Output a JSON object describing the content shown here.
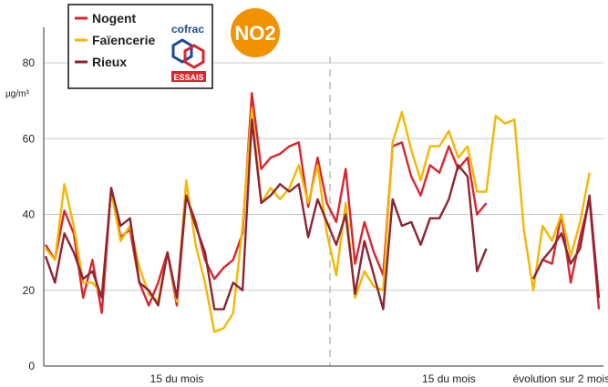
{
  "chart_data": {
    "type": "line",
    "y_label": "µg/m³",
    "pollutant": "NO2",
    "logo": [
      "cofrac",
      "ESSAIS"
    ],
    "categories": [
      null,
      null,
      null,
      null,
      null,
      null,
      null,
      null,
      null,
      null,
      null,
      null,
      null,
      null,
      "15 du mois",
      null,
      null,
      null,
      null,
      null,
      null,
      null,
      null,
      null,
      null,
      null,
      null,
      null,
      null,
      null,
      null,
      null,
      null,
      null,
      null,
      null,
      null,
      null,
      null,
      null,
      null,
      null,
      null,
      "15 du mois",
      null,
      null,
      null,
      null,
      null,
      null,
      null,
      null,
      null,
      null,
      null,
      "évolution sur 2 mois",
      null,
      null,
      null,
      null
    ],
    "series": [
      {
        "name": "Nogent",
        "color": "#d9262e",
        "values": [
          32,
          28,
          41,
          35,
          18,
          28,
          14,
          47,
          34,
          36,
          22,
          16,
          22,
          30,
          16,
          45,
          38,
          28,
          23,
          26,
          28,
          35,
          72,
          52,
          55,
          56,
          58,
          59,
          42,
          55,
          43,
          38,
          52,
          27,
          38,
          30,
          24,
          58,
          59,
          50,
          45,
          53,
          51,
          58,
          52,
          55,
          40,
          43,
          null,
          null,
          null,
          null,
          23,
          28,
          27,
          40,
          22,
          34,
          44,
          15
        ]
      },
      {
        "name": "Faïencerie",
        "color": "#f5b700",
        "values": [
          31,
          28,
          48,
          37,
          22,
          22,
          19,
          46,
          33,
          37,
          26,
          19,
          17,
          30,
          17,
          49,
          32,
          22,
          9,
          10,
          14,
          37,
          68,
          43,
          47,
          44,
          47,
          53,
          43,
          53,
          35,
          24,
          43,
          18,
          25,
          21,
          20,
          59,
          67,
          57,
          49,
          58,
          58,
          62,
          55,
          58,
          46,
          46,
          66,
          64,
          65,
          36,
          20,
          37,
          33,
          40,
          29,
          38,
          51,
          null
        ]
      },
      {
        "name": "Rieux",
        "color": "#8c2433",
        "values": [
          29,
          22,
          35,
          30,
          23,
          25,
          18,
          47,
          37,
          39,
          22,
          20,
          16,
          30,
          18,
          45,
          37,
          30,
          15,
          15,
          22,
          20,
          65,
          43,
          45,
          48,
          46,
          48,
          34,
          44,
          38,
          32,
          40,
          19,
          33,
          24,
          15,
          44,
          37,
          38,
          32,
          39,
          39,
          44,
          53,
          50,
          25,
          31,
          null,
          null,
          null,
          null,
          23,
          28,
          31,
          35,
          27,
          31,
          45,
          18
        ]
      }
    ],
    "ylim": [
      0,
      80
    ],
    "yticks": [
      0,
      20,
      40,
      60,
      80
    ],
    "grid": true
  }
}
